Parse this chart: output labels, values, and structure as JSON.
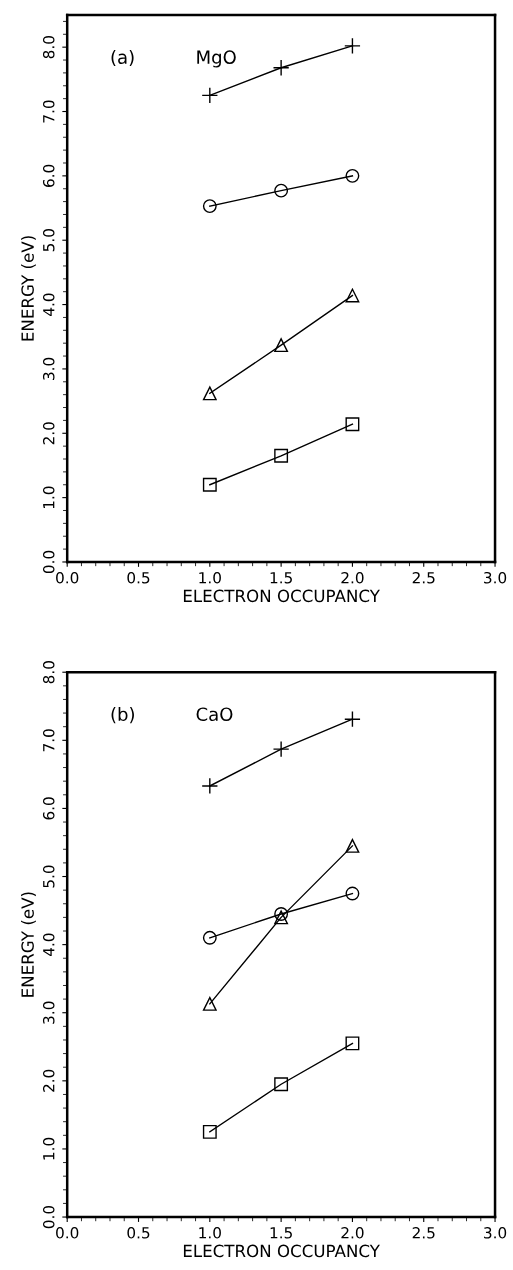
{
  "chart_data": [
    {
      "type": "line",
      "annotations": [
        "(a)",
        "MgO"
      ],
      "xlabel": "ELECTRON OCCUPANCY",
      "ylabel": "ENERGY (eV)",
      "x": [
        1.0,
        1.5,
        2.0
      ],
      "series": [
        {
          "color": "#000000",
          "marker": "cross",
          "values": [
            7.25,
            7.68,
            8.02
          ]
        },
        {
          "color": "#000000",
          "marker": "circle",
          "values": [
            5.53,
            5.77,
            6.0
          ]
        },
        {
          "color": "#000000",
          "marker": "triangle",
          "values": [
            2.62,
            3.37,
            4.14
          ]
        },
        {
          "color": "#000000",
          "marker": "square",
          "values": [
            1.2,
            1.65,
            2.14
          ]
        }
      ],
      "xlim": [
        0,
        3
      ],
      "ylim": [
        0,
        8.5
      ],
      "xticks": [
        {
          "value": 0,
          "label": "0.0"
        },
        {
          "value": 0.5,
          "label": "0.5"
        },
        {
          "value": 1,
          "label": "1.0"
        },
        {
          "value": 1.5,
          "label": "1.5"
        },
        {
          "value": 2,
          "label": "2.0"
        },
        {
          "value": 2.5,
          "label": "2.5"
        },
        {
          "value": 3,
          "label": "3.0"
        }
      ],
      "yticks": [
        {
          "value": 0,
          "label": "0.0"
        },
        {
          "value": 1,
          "label": "1.0"
        },
        {
          "value": 2,
          "label": "2.0"
        },
        {
          "value": 3,
          "label": "3.0"
        },
        {
          "value": 4,
          "label": "4.0"
        },
        {
          "value": 5,
          "label": "5.0"
        },
        {
          "value": 6,
          "label": "6.0"
        },
        {
          "value": 7,
          "label": "7.0"
        },
        {
          "value": 8,
          "label": "8.0"
        }
      ],
      "grid": false,
      "legend": false,
      "line_style": "solid"
    },
    {
      "type": "line",
      "annotations": [
        "(b)",
        "CaO"
      ],
      "xlabel": "ELECTRON OCCUPANCY",
      "ylabel": "ENERGY (eV)",
      "x": [
        1.0,
        1.5,
        2.0
      ],
      "series": [
        {
          "color": "#000000",
          "marker": "cross",
          "values": [
            6.33,
            6.87,
            7.31
          ]
        },
        {
          "color": "#000000",
          "marker": "circle",
          "values": [
            4.1,
            4.45,
            4.75
          ]
        },
        {
          "color": "#000000",
          "marker": "triangle",
          "values": [
            3.13,
            4.4,
            5.45
          ]
        },
        {
          "color": "#000000",
          "marker": "square",
          "values": [
            1.25,
            1.95,
            2.55
          ]
        }
      ],
      "xlim": [
        0,
        3
      ],
      "ylim": [
        0,
        8
      ],
      "xticks": [
        {
          "value": 0,
          "label": "0.0"
        },
        {
          "value": 0.5,
          "label": "0.5"
        },
        {
          "value": 1,
          "label": "1.0"
        },
        {
          "value": 1.5,
          "label": "1.5"
        },
        {
          "value": 2,
          "label": "2.0"
        },
        {
          "value": 2.5,
          "label": "2.5"
        },
        {
          "value": 3,
          "label": "3.0"
        }
      ],
      "yticks": [
        {
          "value": 0,
          "label": "0.0"
        },
        {
          "value": 1,
          "label": "1.0"
        },
        {
          "value": 2,
          "label": "2.0"
        },
        {
          "value": 3,
          "label": "3.0"
        },
        {
          "value": 4,
          "label": "4.0"
        },
        {
          "value": 5,
          "label": "5.0"
        },
        {
          "value": 6,
          "label": "6.0"
        },
        {
          "value": 7,
          "label": "7.0"
        },
        {
          "value": 8,
          "label": "8.0"
        }
      ],
      "grid": false,
      "legend": false,
      "line_style": "solid"
    }
  ]
}
